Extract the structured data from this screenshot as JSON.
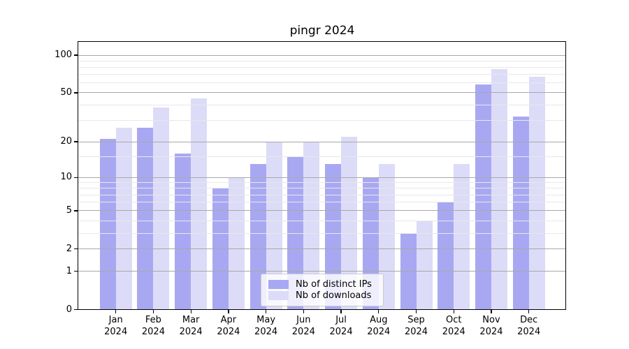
{
  "title": "pingr 2024",
  "chart_data": {
    "type": "bar",
    "title": "pingr 2024",
    "yscale": "log1p",
    "categories": [
      "Jan",
      "Feb",
      "Mar",
      "Apr",
      "May",
      "Jun",
      "Jul",
      "Aug",
      "Sep",
      "Oct",
      "Nov",
      "Dec"
    ],
    "category_year": "2024",
    "series": [
      {
        "name": "Nb of distinct IPs",
        "color": "#a8a8f2",
        "values": [
          21,
          26,
          16,
          8,
          13,
          15,
          13,
          10,
          3,
          6,
          58,
          32
        ]
      },
      {
        "name": "Nb of downloads",
        "color": "#dcdcf8",
        "values": [
          26,
          38,
          45,
          10,
          20,
          20,
          22,
          13,
          4,
          13,
          77,
          67
        ]
      }
    ],
    "yticks": [
      0,
      1,
      2,
      5,
      10,
      20,
      50,
      100
    ],
    "minor_yticks": [
      3,
      4,
      6,
      7,
      8,
      9,
      15,
      30,
      40,
      60,
      70,
      80,
      90
    ],
    "ylim": [
      0,
      128
    ],
    "xlabel": "",
    "ylabel": "",
    "grid": true,
    "legend_position": "lower center",
    "colors": {
      "background": "#ffffff",
      "major_grid": "#a8a8a8",
      "minor_grid": "#e8e8e8",
      "spine": "#000000",
      "text": "#000000"
    }
  }
}
